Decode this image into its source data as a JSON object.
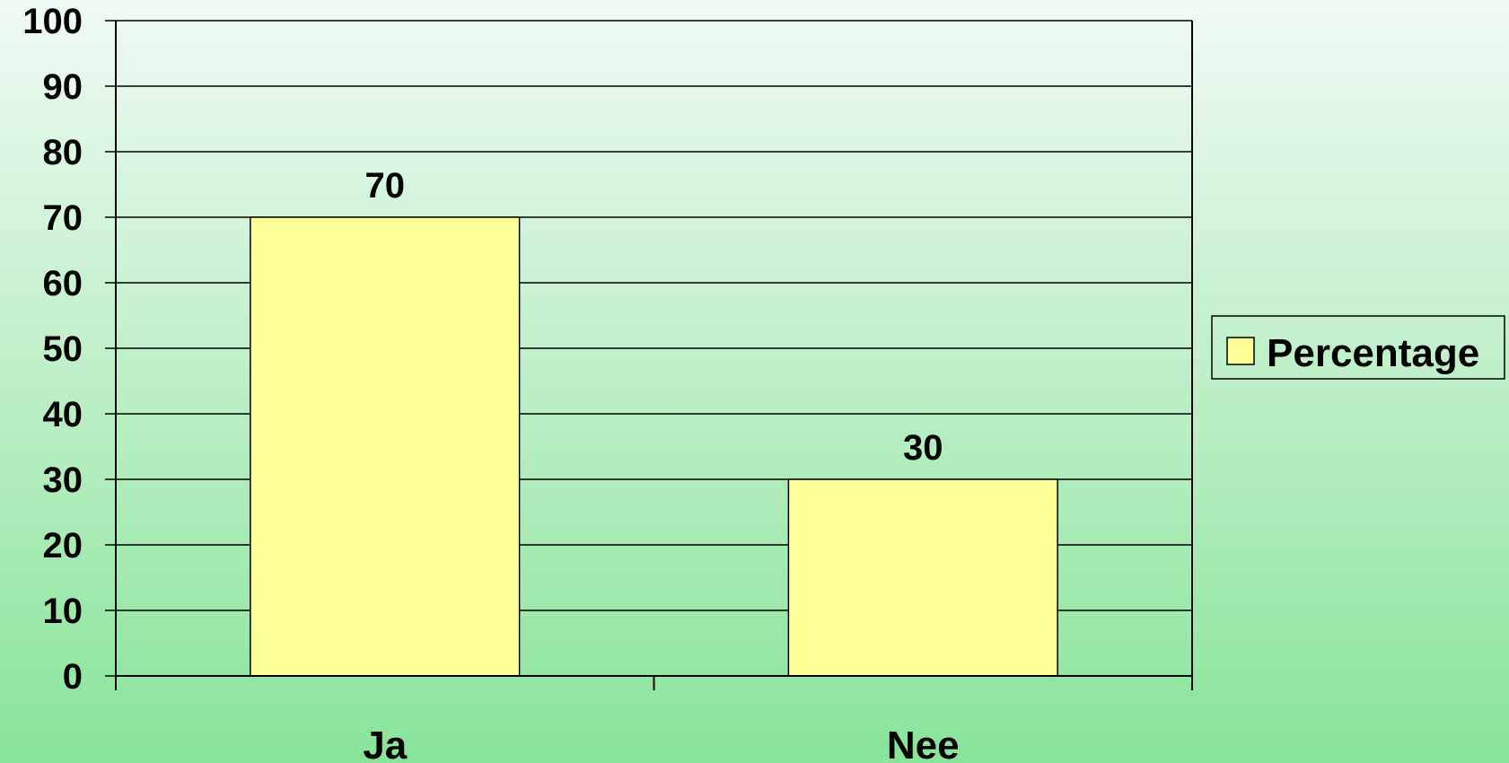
{
  "chart_data": {
    "type": "bar",
    "title": "",
    "xlabel": "",
    "ylabel": "",
    "categories": [
      "Ja",
      "Nee"
    ],
    "series": [
      {
        "name": "Percentage",
        "values": [
          70,
          30
        ]
      }
    ],
    "ylim": [
      0,
      100
    ],
    "yticks": [
      "0",
      "10",
      "20",
      "30",
      "40",
      "50",
      "60",
      "70",
      "80",
      "90",
      "100"
    ],
    "data_labels": [
      "70",
      "30"
    ],
    "grid": true,
    "legend": "right",
    "bar_color": "#ffff99",
    "background": [
      "#f0faf4",
      "#88e49a"
    ]
  }
}
